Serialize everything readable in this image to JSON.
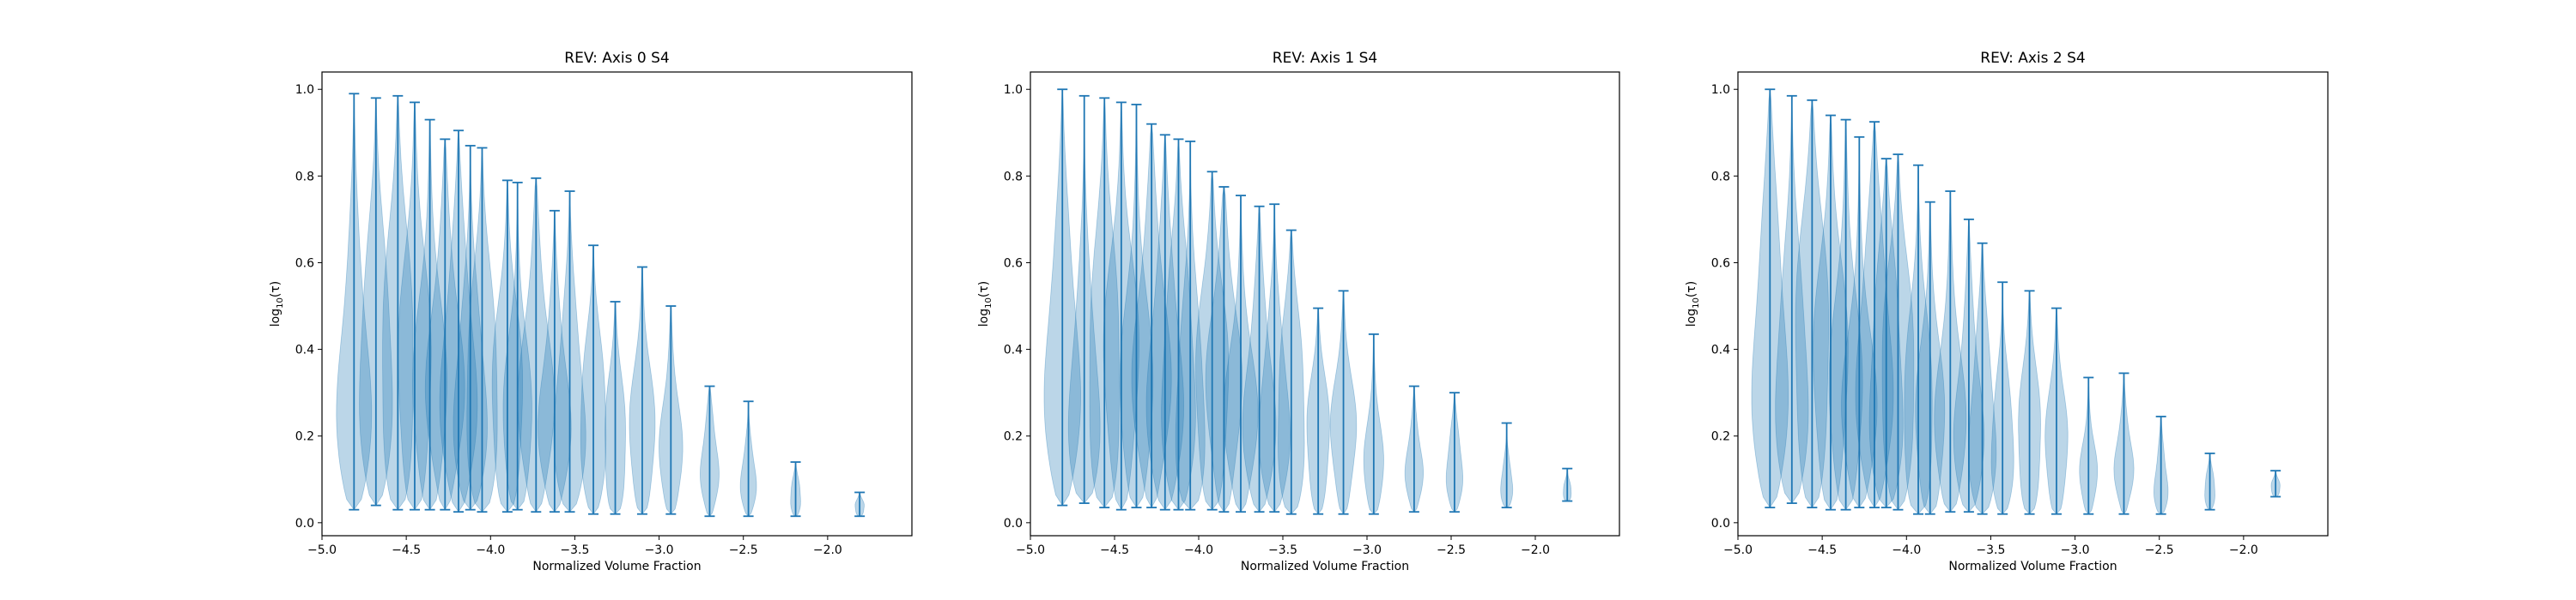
{
  "chart_data": [
    {
      "type": "violin",
      "title": "REV: Axis 0 S4",
      "xlabel": "Normalized Volume Fraction",
      "ylabel": "log",
      "ylabel_sub": "10",
      "ylabel_suffix": "(τ)",
      "xlim": [
        -5.0,
        -1.5
      ],
      "ylim": [
        -0.03,
        1.04
      ],
      "xticks": [
        -5.0,
        -4.5,
        -4.0,
        -3.5,
        -3.0,
        -2.5,
        -2.0
      ],
      "xtick_labels": [
        "−5.0",
        "−4.5",
        "−4.0",
        "−3.5",
        "−3.0",
        "−2.5",
        "−2.0"
      ],
      "yticks": [
        0.0,
        0.2,
        0.4,
        0.6,
        0.8,
        1.0
      ],
      "ytick_labels": [
        "0.0",
        "0.2",
        "0.4",
        "0.6",
        "0.8",
        "1.0"
      ],
      "violins": [
        {
          "x": -4.81,
          "min": 0.03,
          "max": 0.99
        },
        {
          "x": -4.68,
          "min": 0.04,
          "max": 0.98
        },
        {
          "x": -4.55,
          "min": 0.03,
          "max": 0.985
        },
        {
          "x": -4.45,
          "min": 0.03,
          "max": 0.97
        },
        {
          "x": -4.36,
          "min": 0.03,
          "max": 0.93
        },
        {
          "x": -4.27,
          "min": 0.03,
          "max": 0.885
        },
        {
          "x": -4.19,
          "min": 0.025,
          "max": 0.905
        },
        {
          "x": -4.12,
          "min": 0.03,
          "max": 0.87
        },
        {
          "x": -4.05,
          "min": 0.025,
          "max": 0.865
        },
        {
          "x": -3.9,
          "min": 0.025,
          "max": 0.79
        },
        {
          "x": -3.84,
          "min": 0.03,
          "max": 0.785
        },
        {
          "x": -3.73,
          "min": 0.025,
          "max": 0.795
        },
        {
          "x": -3.62,
          "min": 0.025,
          "max": 0.72
        },
        {
          "x": -3.53,
          "min": 0.025,
          "max": 0.765
        },
        {
          "x": -3.39,
          "min": 0.02,
          "max": 0.64
        },
        {
          "x": -3.26,
          "min": 0.02,
          "max": 0.51
        },
        {
          "x": -3.1,
          "min": 0.02,
          "max": 0.59
        },
        {
          "x": -2.93,
          "min": 0.02,
          "max": 0.5
        },
        {
          "x": -2.7,
          "min": 0.015,
          "max": 0.315
        },
        {
          "x": -2.47,
          "min": 0.015,
          "max": 0.28
        },
        {
          "x": -2.19,
          "min": 0.015,
          "max": 0.14
        },
        {
          "x": -1.81,
          "min": 0.015,
          "max": 0.07
        }
      ]
    },
    {
      "type": "violin",
      "title": "REV: Axis 1 S4",
      "xlabel": "Normalized Volume Fraction",
      "ylabel": "log",
      "ylabel_sub": "10",
      "ylabel_suffix": "(τ)",
      "xlim": [
        -5.0,
        -1.5
      ],
      "ylim": [
        -0.03,
        1.04
      ],
      "xticks": [
        -5.0,
        -4.5,
        -4.0,
        -3.5,
        -3.0,
        -2.5,
        -2.0
      ],
      "xtick_labels": [
        "−5.0",
        "−4.5",
        "−4.0",
        "−3.5",
        "−3.0",
        "−2.5",
        "−2.0"
      ],
      "yticks": [
        0.0,
        0.2,
        0.4,
        0.6,
        0.8,
        1.0
      ],
      "ytick_labels": [
        "0.0",
        "0.2",
        "0.4",
        "0.6",
        "0.8",
        "1.0"
      ],
      "violins": [
        {
          "x": -4.81,
          "min": 0.04,
          "max": 1.0
        },
        {
          "x": -4.68,
          "min": 0.045,
          "max": 0.985
        },
        {
          "x": -4.56,
          "min": 0.035,
          "max": 0.98
        },
        {
          "x": -4.46,
          "min": 0.03,
          "max": 0.97
        },
        {
          "x": -4.37,
          "min": 0.035,
          "max": 0.965
        },
        {
          "x": -4.28,
          "min": 0.035,
          "max": 0.92
        },
        {
          "x": -4.2,
          "min": 0.03,
          "max": 0.895
        },
        {
          "x": -4.12,
          "min": 0.03,
          "max": 0.885
        },
        {
          "x": -4.05,
          "min": 0.03,
          "max": 0.88
        },
        {
          "x": -3.92,
          "min": 0.03,
          "max": 0.81
        },
        {
          "x": -3.85,
          "min": 0.025,
          "max": 0.775
        },
        {
          "x": -3.75,
          "min": 0.025,
          "max": 0.755
        },
        {
          "x": -3.64,
          "min": 0.025,
          "max": 0.73
        },
        {
          "x": -3.55,
          "min": 0.025,
          "max": 0.735
        },
        {
          "x": -3.45,
          "min": 0.02,
          "max": 0.675
        },
        {
          "x": -3.29,
          "min": 0.02,
          "max": 0.495
        },
        {
          "x": -3.14,
          "min": 0.02,
          "max": 0.535
        },
        {
          "x": -2.96,
          "min": 0.02,
          "max": 0.435
        },
        {
          "x": -2.72,
          "min": 0.025,
          "max": 0.315
        },
        {
          "x": -2.48,
          "min": 0.025,
          "max": 0.3
        },
        {
          "x": -2.17,
          "min": 0.035,
          "max": 0.23
        },
        {
          "x": -1.81,
          "min": 0.05,
          "max": 0.125
        }
      ]
    },
    {
      "type": "violin",
      "title": "REV: Axis 2 S4",
      "xlabel": "Normalized Volume Fraction",
      "ylabel": "log",
      "ylabel_sub": "10",
      "ylabel_suffix": "(τ)",
      "xlim": [
        -5.0,
        -1.5
      ],
      "ylim": [
        -0.03,
        1.04
      ],
      "xticks": [
        -5.0,
        -4.5,
        -4.0,
        -3.5,
        -3.0,
        -2.5,
        -2.0
      ],
      "xtick_labels": [
        "−5.0",
        "−4.5",
        "−4.0",
        "−3.5",
        "−3.0",
        "−2.5",
        "−2.0"
      ],
      "yticks": [
        0.0,
        0.2,
        0.4,
        0.6,
        0.8,
        1.0
      ],
      "ytick_labels": [
        "0.0",
        "0.2",
        "0.4",
        "0.6",
        "0.8",
        "1.0"
      ],
      "violins": [
        {
          "x": -4.81,
          "min": 0.035,
          "max": 1.0
        },
        {
          "x": -4.68,
          "min": 0.045,
          "max": 0.985
        },
        {
          "x": -4.56,
          "min": 0.035,
          "max": 0.975
        },
        {
          "x": -4.45,
          "min": 0.03,
          "max": 0.94
        },
        {
          "x": -4.36,
          "min": 0.03,
          "max": 0.93
        },
        {
          "x": -4.28,
          "min": 0.035,
          "max": 0.89
        },
        {
          "x": -4.19,
          "min": 0.035,
          "max": 0.925
        },
        {
          "x": -4.12,
          "min": 0.035,
          "max": 0.84
        },
        {
          "x": -4.05,
          "min": 0.03,
          "max": 0.85
        },
        {
          "x": -3.93,
          "min": 0.02,
          "max": 0.825
        },
        {
          "x": -3.86,
          "min": 0.02,
          "max": 0.74
        },
        {
          "x": -3.74,
          "min": 0.025,
          "max": 0.765
        },
        {
          "x": -3.63,
          "min": 0.025,
          "max": 0.7
        },
        {
          "x": -3.55,
          "min": 0.02,
          "max": 0.645
        },
        {
          "x": -3.43,
          "min": 0.02,
          "max": 0.555
        },
        {
          "x": -3.27,
          "min": 0.02,
          "max": 0.535
        },
        {
          "x": -3.11,
          "min": 0.02,
          "max": 0.495
        },
        {
          "x": -2.92,
          "min": 0.02,
          "max": 0.335
        },
        {
          "x": -2.71,
          "min": 0.02,
          "max": 0.345
        },
        {
          "x": -2.49,
          "min": 0.02,
          "max": 0.245
        },
        {
          "x": -2.2,
          "min": 0.03,
          "max": 0.16
        },
        {
          "x": -1.81,
          "min": 0.06,
          "max": 0.12
        }
      ]
    }
  ],
  "colors": {
    "stroke": "#1f77b4",
    "fill": "#1f77b4",
    "fill_opacity": 0.3,
    "spine": "#000000"
  }
}
